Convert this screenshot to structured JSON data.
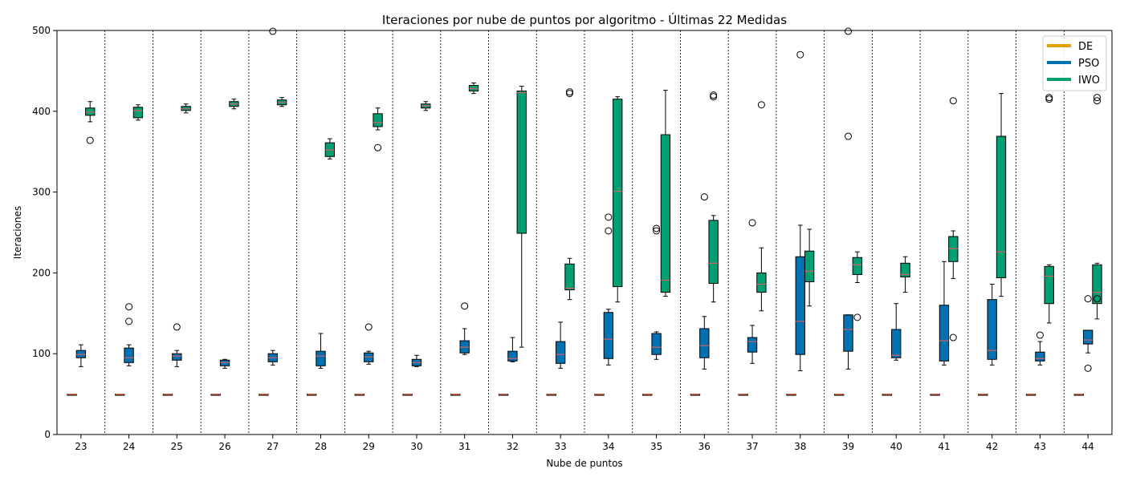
{
  "chart_data": {
    "type": "box",
    "title": "Iteraciones por nube de puntos por algoritmo - Últimas 22 Medidas",
    "xlabel": "Nube de puntos",
    "ylabel": "Iteraciones",
    "ylim": [
      0,
      500
    ],
    "yticks": [
      0,
      100,
      200,
      300,
      400,
      500
    ],
    "categories": [
      "23",
      "24",
      "25",
      "26",
      "27",
      "28",
      "29",
      "30",
      "31",
      "32",
      "33",
      "34",
      "35",
      "36",
      "37",
      "38",
      "39",
      "40",
      "41",
      "42",
      "43",
      "44"
    ],
    "legend": {
      "position": "top-right"
    },
    "series": [
      {
        "name": "DE",
        "color": "#E69F00",
        "boxes": [
          {
            "whislo": 50,
            "q1": 50,
            "med": 50,
            "q3": 50,
            "whishi": 50,
            "fliers": []
          },
          {
            "whislo": 50,
            "q1": 50,
            "med": 50,
            "q3": 50,
            "whishi": 50,
            "fliers": []
          },
          {
            "whislo": 50,
            "q1": 50,
            "med": 50,
            "q3": 50,
            "whishi": 50,
            "fliers": []
          },
          {
            "whislo": 50,
            "q1": 50,
            "med": 50,
            "q3": 50,
            "whishi": 50,
            "fliers": []
          },
          {
            "whislo": 50,
            "q1": 50,
            "med": 50,
            "q3": 50,
            "whishi": 50,
            "fliers": []
          },
          {
            "whislo": 50,
            "q1": 50,
            "med": 50,
            "q3": 50,
            "whishi": 50,
            "fliers": []
          },
          {
            "whislo": 50,
            "q1": 50,
            "med": 50,
            "q3": 50,
            "whishi": 50,
            "fliers": []
          },
          {
            "whislo": 50,
            "q1": 50,
            "med": 50,
            "q3": 50,
            "whishi": 50,
            "fliers": []
          },
          {
            "whislo": 50,
            "q1": 50,
            "med": 50,
            "q3": 50,
            "whishi": 50,
            "fliers": []
          },
          {
            "whislo": 50,
            "q1": 50,
            "med": 50,
            "q3": 50,
            "whishi": 50,
            "fliers": []
          },
          {
            "whislo": 50,
            "q1": 50,
            "med": 50,
            "q3": 50,
            "whishi": 50,
            "fliers": []
          },
          {
            "whislo": 50,
            "q1": 50,
            "med": 50,
            "q3": 50,
            "whishi": 50,
            "fliers": []
          },
          {
            "whislo": 50,
            "q1": 50,
            "med": 50,
            "q3": 50,
            "whishi": 50,
            "fliers": []
          },
          {
            "whislo": 50,
            "q1": 50,
            "med": 50,
            "q3": 50,
            "whishi": 50,
            "fliers": []
          },
          {
            "whislo": 50,
            "q1": 50,
            "med": 50,
            "q3": 50,
            "whishi": 50,
            "fliers": []
          },
          {
            "whislo": 50,
            "q1": 50,
            "med": 50,
            "q3": 50,
            "whishi": 50,
            "fliers": []
          },
          {
            "whislo": 50,
            "q1": 50,
            "med": 50,
            "q3": 50,
            "whishi": 50,
            "fliers": []
          },
          {
            "whislo": 50,
            "q1": 50,
            "med": 50,
            "q3": 50,
            "whishi": 50,
            "fliers": []
          },
          {
            "whislo": 50,
            "q1": 50,
            "med": 50,
            "q3": 50,
            "whishi": 50,
            "fliers": []
          },
          {
            "whislo": 50,
            "q1": 50,
            "med": 50,
            "q3": 50,
            "whishi": 50,
            "fliers": []
          },
          {
            "whislo": 50,
            "q1": 50,
            "med": 50,
            "q3": 50,
            "whishi": 50,
            "fliers": []
          },
          {
            "whislo": 50,
            "q1": 50,
            "med": 50,
            "q3": 50,
            "whishi": 50,
            "fliers": []
          }
        ]
      },
      {
        "name": "PSO",
        "color": "#0072B2",
        "boxes": [
          {
            "whislo": 84,
            "q1": 95,
            "med": 99,
            "q3": 104,
            "whishi": 111,
            "fliers": []
          },
          {
            "whislo": 85,
            "q1": 89,
            "med": 95,
            "q3": 107,
            "whishi": 111,
            "fliers": [
              140,
              158
            ]
          },
          {
            "whislo": 84,
            "q1": 92,
            "med": 97,
            "q3": 100,
            "whishi": 104,
            "fliers": [
              133
            ]
          },
          {
            "whislo": 82,
            "q1": 85,
            "med": 89,
            "q3": 92,
            "whishi": 93,
            "fliers": []
          },
          {
            "whislo": 86,
            "q1": 90,
            "med": 95,
            "q3": 100,
            "whishi": 104,
            "fliers": [
              499
            ]
          },
          {
            "whislo": 82,
            "q1": 85,
            "med": 97,
            "q3": 103,
            "whishi": 125,
            "fliers": []
          },
          {
            "whislo": 87,
            "q1": 90,
            "med": 96,
            "q3": 101,
            "whishi": 103,
            "fliers": [
              133
            ]
          },
          {
            "whislo": 84,
            "q1": 85,
            "med": 89,
            "q3": 93,
            "whishi": 98,
            "fliers": []
          },
          {
            "whislo": 99,
            "q1": 101,
            "med": 108,
            "q3": 116,
            "whishi": 131,
            "fliers": [
              159
            ]
          },
          {
            "whislo": 90,
            "q1": 91,
            "med": 94,
            "q3": 103,
            "whishi": 120,
            "fliers": []
          },
          {
            "whislo": 82,
            "q1": 88,
            "med": 99,
            "q3": 115,
            "whishi": 139,
            "fliers": []
          },
          {
            "whislo": 86,
            "q1": 94,
            "med": 118,
            "q3": 151,
            "whishi": 155,
            "fliers": [
              252,
              269
            ]
          },
          {
            "whislo": 93,
            "q1": 99,
            "med": 108,
            "q3": 125,
            "whishi": 127,
            "fliers": [
              252,
              255
            ]
          },
          {
            "whislo": 81,
            "q1": 95,
            "med": 110,
            "q3": 131,
            "whishi": 146,
            "fliers": [
              294
            ]
          },
          {
            "whislo": 88,
            "q1": 102,
            "med": 115,
            "q3": 120,
            "whishi": 135,
            "fliers": [
              262
            ]
          },
          {
            "whislo": 79,
            "q1": 99,
            "med": 140,
            "q3": 220,
            "whishi": 259,
            "fliers": [
              470
            ]
          },
          {
            "whislo": 81,
            "q1": 103,
            "med": 130,
            "q3": 148,
            "whishi": 148,
            "fliers": [
              369,
              499
            ]
          },
          {
            "whislo": 92,
            "q1": 95,
            "med": 98,
            "q3": 130,
            "whishi": 162,
            "fliers": []
          },
          {
            "whislo": 86,
            "q1": 91,
            "med": 116,
            "q3": 160,
            "whishi": 214,
            "fliers": []
          },
          {
            "whislo": 86,
            "q1": 93,
            "med": 104,
            "q3": 167,
            "whishi": 186,
            "fliers": []
          },
          {
            "whislo": 86,
            "q1": 91,
            "med": 94,
            "q3": 102,
            "whishi": 115,
            "fliers": [
              123
            ]
          },
          {
            "whislo": 101,
            "q1": 112,
            "med": 117,
            "q3": 129,
            "whishi": 129,
            "fliers": [
              82,
              168
            ]
          }
        ]
      },
      {
        "name": "IWO",
        "color": "#009E73",
        "boxes": [
          {
            "whislo": 387,
            "q1": 395,
            "med": 399,
            "q3": 404,
            "whishi": 412,
            "fliers": [
              364
            ]
          },
          {
            "whislo": 389,
            "q1": 392,
            "med": 401,
            "q3": 405,
            "whishi": 408,
            "fliers": []
          },
          {
            "whislo": 398,
            "q1": 401,
            "med": 403,
            "q3": 406,
            "whishi": 409,
            "fliers": []
          },
          {
            "whislo": 403,
            "q1": 406,
            "med": 409,
            "q3": 412,
            "whishi": 415,
            "fliers": []
          },
          {
            "whislo": 406,
            "q1": 408,
            "med": 411,
            "q3": 414,
            "whishi": 417,
            "fliers": []
          },
          {
            "whislo": 341,
            "q1": 344,
            "med": 352,
            "q3": 361,
            "whishi": 366,
            "fliers": []
          },
          {
            "whislo": 377,
            "q1": 381,
            "med": 386,
            "q3": 397,
            "whishi": 404,
            "fliers": [
              355
            ]
          },
          {
            "whislo": 401,
            "q1": 404,
            "med": 407,
            "q3": 409,
            "whishi": 412,
            "fliers": []
          },
          {
            "whislo": 422,
            "q1": 425,
            "med": 428,
            "q3": 432,
            "whishi": 435,
            "fliers": []
          },
          {
            "whislo": 108,
            "q1": 249,
            "med": 423,
            "q3": 425,
            "whishi": 431,
            "fliers": []
          },
          {
            "whislo": 167,
            "q1": 179,
            "med": 181,
            "q3": 211,
            "whishi": 218,
            "fliers": [
              422,
              424
            ]
          },
          {
            "whislo": 164,
            "q1": 183,
            "med": 301,
            "q3": 415,
            "whishi": 418,
            "fliers": []
          },
          {
            "whislo": 171,
            "q1": 176,
            "med": 191,
            "q3": 371,
            "whishi": 426,
            "fliers": []
          },
          {
            "whislo": 164,
            "q1": 187,
            "med": 212,
            "q3": 265,
            "whishi": 271,
            "fliers": [
              418,
              420
            ]
          },
          {
            "whislo": 153,
            "q1": 176,
            "med": 186,
            "q3": 200,
            "whishi": 231,
            "fliers": [
              408
            ]
          },
          {
            "whislo": 159,
            "q1": 189,
            "med": 202,
            "q3": 227,
            "whishi": 254,
            "fliers": []
          },
          {
            "whislo": 188,
            "q1": 198,
            "med": 210,
            "q3": 219,
            "whishi": 226,
            "fliers": [
              145
            ]
          },
          {
            "whislo": 176,
            "q1": 195,
            "med": 198,
            "q3": 212,
            "whishi": 220,
            "fliers": []
          },
          {
            "whislo": 193,
            "q1": 214,
            "med": 230,
            "q3": 245,
            "whishi": 252,
            "fliers": [
              120,
              413
            ]
          },
          {
            "whislo": 171,
            "q1": 194,
            "med": 226,
            "q3": 369,
            "whishi": 422,
            "fliers": []
          },
          {
            "whislo": 138,
            "q1": 162,
            "med": 196,
            "q3": 208,
            "whishi": 210,
            "fliers": [
              415,
              417
            ]
          },
          {
            "whislo": 143,
            "q1": 162,
            "med": 176,
            "q3": 210,
            "whishi": 212,
            "fliers": [
              168,
              413,
              417
            ]
          }
        ]
      }
    ],
    "median_color": "#D65F5F"
  }
}
